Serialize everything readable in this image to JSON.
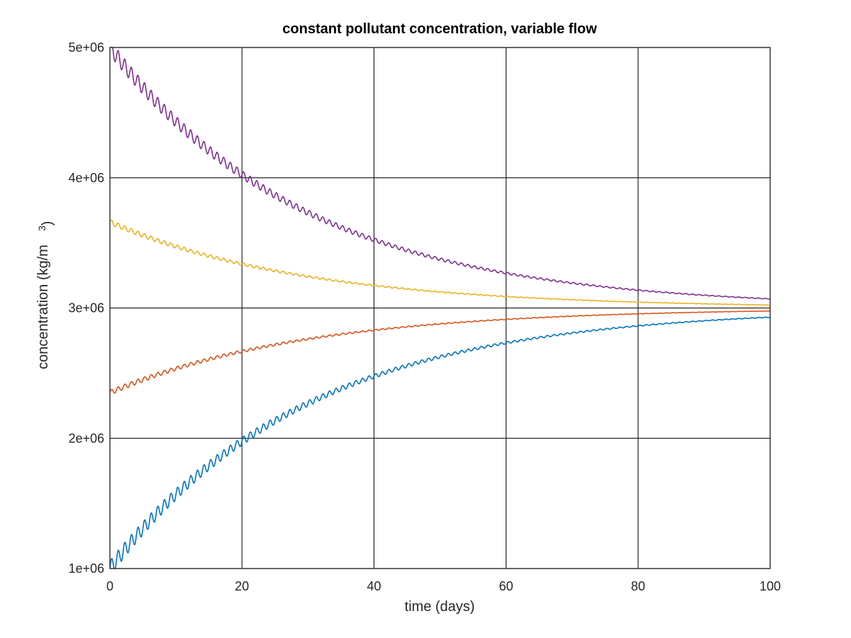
{
  "chart_data": {
    "type": "line",
    "title": "constant pollutant concentration, variable flow",
    "xlabel": "time (days)",
    "ylabel": "concentration (kg/m",
    "ylabel_superscript": "3",
    "ylabel_close": ")",
    "xlim": [
      0,
      100
    ],
    "ylim": [
      1000000,
      5000000
    ],
    "xticks": [
      0,
      20,
      40,
      60,
      80,
      100
    ],
    "xtick_labels": [
      "0",
      "20",
      "40",
      "60",
      "80",
      "100"
    ],
    "yticks": [
      1000000,
      2000000,
      3000000,
      4000000,
      5000000
    ],
    "ytick_labels": [
      "1e+06",
      "2e+06",
      "3e+06",
      "4e+06",
      "5e+06"
    ],
    "grid": true,
    "series": [
      {
        "color": "#0072bd",
        "start": 1000000,
        "steady": 3000000,
        "rate": 0.0335,
        "ripple_amp": 60000,
        "ripple_period": 1.0
      },
      {
        "color": "#d95319",
        "start": 2350000,
        "steady": 3000000,
        "rate": 0.0335,
        "ripple_amp": 20000,
        "ripple_period": 1.0
      },
      {
        "color": "#edb120",
        "start": 3660000,
        "steady": 3000000,
        "rate": 0.0335,
        "ripple_amp": 20000,
        "ripple_period": 1.0
      },
      {
        "color": "#7e2f8e",
        "start": 5000000,
        "steady": 3000000,
        "rate": 0.0335,
        "ripple_amp": 60000,
        "ripple_period": 1.0
      }
    ]
  }
}
